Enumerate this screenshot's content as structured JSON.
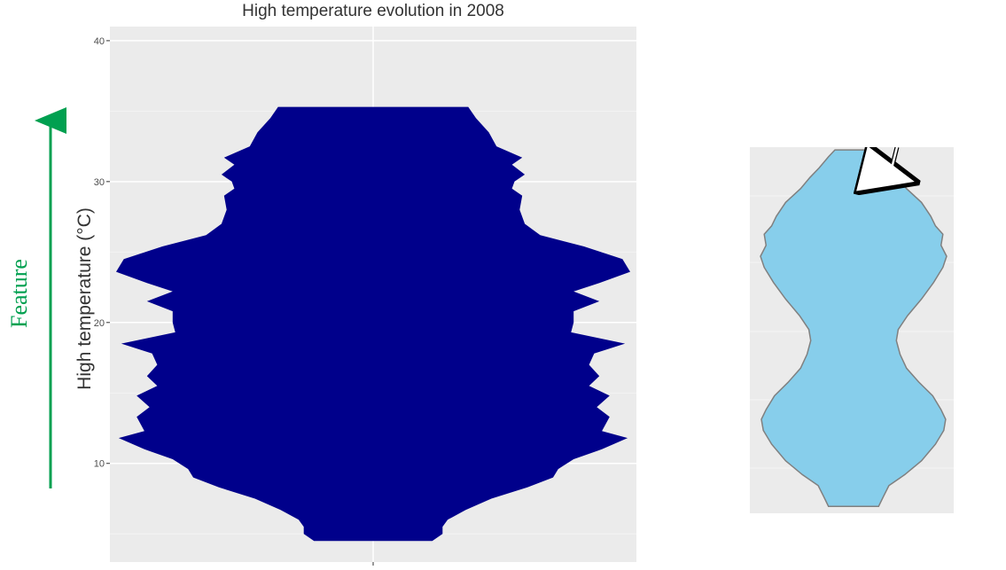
{
  "annotation": {
    "label": "Feature",
    "color": "#00a050"
  },
  "chart_data": [
    {
      "type": "violin",
      "title": "High temperature evolution in 2008",
      "xlabel": "",
      "ylabel": "High temperature (°C)",
      "ylim": [
        3,
        41
      ],
      "yticks": [
        10,
        20,
        30,
        40
      ],
      "yticklabels": [
        "10",
        "20",
        "30",
        "40"
      ],
      "grid": true,
      "fill": "#00008b",
      "background": "#ebebeb",
      "width_scale": 290,
      "profile": [
        [
          4.5,
          0.23
        ],
        [
          5.0,
          0.27
        ],
        [
          5.5,
          0.27
        ],
        [
          6.0,
          0.29
        ],
        [
          6.7,
          0.36
        ],
        [
          7.5,
          0.46
        ],
        [
          8.3,
          0.6
        ],
        [
          9.0,
          0.7
        ],
        [
          9.6,
          0.72
        ],
        [
          10.3,
          0.78
        ],
        [
          11.0,
          0.89
        ],
        [
          11.8,
          0.99
        ],
        [
          12.3,
          0.89
        ],
        [
          13.3,
          0.92
        ],
        [
          14.0,
          0.87
        ],
        [
          14.8,
          0.92
        ],
        [
          15.5,
          0.84
        ],
        [
          16.2,
          0.88
        ],
        [
          17.0,
          0.84
        ],
        [
          17.8,
          0.86
        ],
        [
          18.5,
          0.98
        ],
        [
          19.3,
          0.77
        ],
        [
          20.0,
          0.78
        ],
        [
          20.8,
          0.78
        ],
        [
          21.5,
          0.88
        ],
        [
          22.2,
          0.78
        ],
        [
          22.8,
          0.88
        ],
        [
          23.6,
          1.0
        ],
        [
          24.5,
          0.97
        ],
        [
          25.4,
          0.82
        ],
        [
          26.2,
          0.65
        ],
        [
          27.0,
          0.59
        ],
        [
          28.0,
          0.57
        ],
        [
          29.0,
          0.58
        ],
        [
          29.5,
          0.54
        ],
        [
          30.0,
          0.55
        ],
        [
          30.5,
          0.59
        ],
        [
          31.2,
          0.54
        ],
        [
          31.7,
          0.58
        ],
        [
          32.5,
          0.48
        ],
        [
          33.5,
          0.45
        ],
        [
          34.5,
          0.4
        ],
        [
          35.3,
          0.37
        ]
      ]
    },
    {
      "type": "violin",
      "title": "",
      "fill": "#87ceeb",
      "outline": "#808080",
      "background": "#ebebeb",
      "width_scale": 105,
      "ylim": [
        5,
        31.5
      ],
      "annotation": "arrow pointing at upper neck",
      "profile": [
        [
          5.5,
          0.27
        ],
        [
          6.2,
          0.32
        ],
        [
          7.0,
          0.38
        ],
        [
          7.8,
          0.55
        ],
        [
          8.8,
          0.73
        ],
        [
          10.0,
          0.88
        ],
        [
          11.0,
          0.97
        ],
        [
          11.8,
          0.99
        ],
        [
          12.5,
          0.94
        ],
        [
          13.5,
          0.85
        ],
        [
          14.5,
          0.7
        ],
        [
          15.5,
          0.57
        ],
        [
          16.5,
          0.5
        ],
        [
          17.5,
          0.46
        ],
        [
          18.3,
          0.48
        ],
        [
          19.3,
          0.58
        ],
        [
          20.5,
          0.73
        ],
        [
          21.7,
          0.86
        ],
        [
          22.8,
          0.96
        ],
        [
          23.6,
          1.0
        ],
        [
          24.4,
          0.94
        ],
        [
          25.2,
          0.96
        ],
        [
          25.8,
          0.88
        ],
        [
          26.5,
          0.83
        ],
        [
          27.5,
          0.73
        ],
        [
          28.5,
          0.57
        ],
        [
          29.3,
          0.47
        ],
        [
          30.0,
          0.37
        ],
        [
          30.8,
          0.27
        ],
        [
          31.3,
          0.2
        ]
      ]
    }
  ]
}
